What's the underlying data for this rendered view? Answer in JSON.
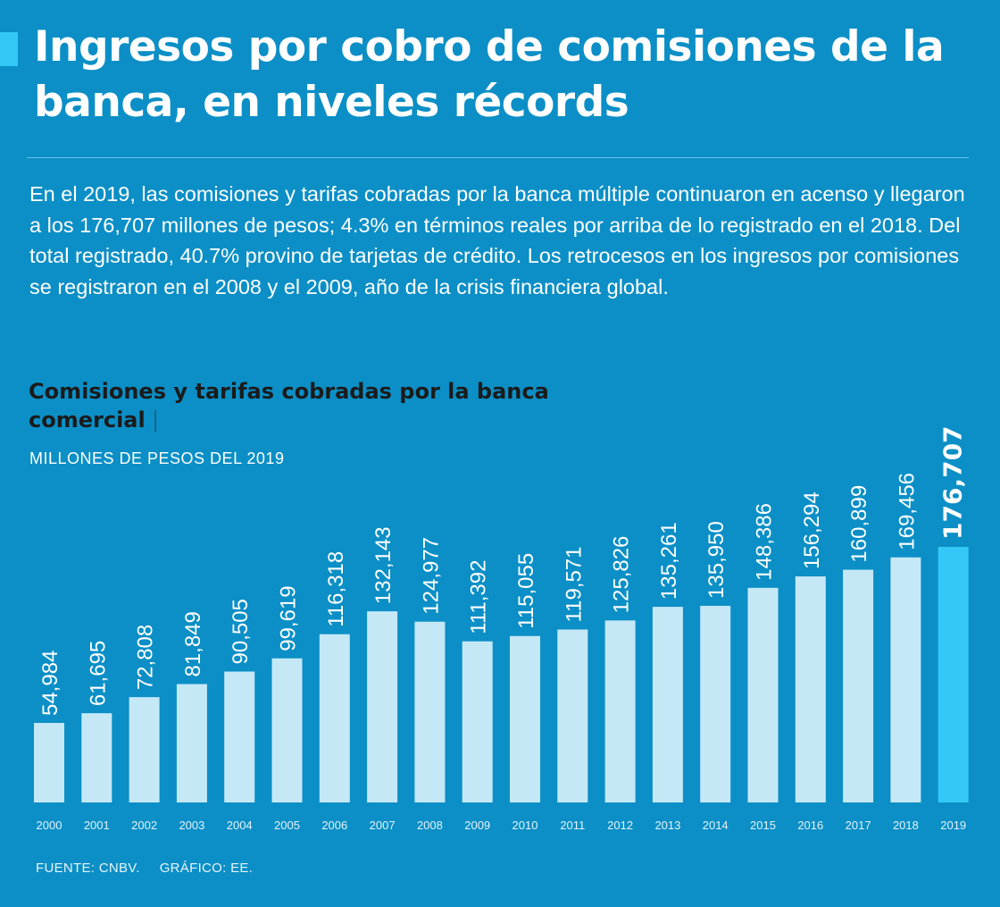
{
  "header": {
    "title": "Ingresos por cobro de comisiones de la banca, en niveles récords"
  },
  "intro": {
    "text": "En el 2019, las comisiones y tarifas cobradas por la banca múltiple continuaron en acenso y llegaron a los 176,707 millones de pesos; 4.3% en términos reales por arriba de lo registrado en el 2018. Del total registrado, 40.7% provino de tarjetas de crédito. Los retrocesos en los ingresos por comisiones se registraron en el 2008 y el 2009, año de la crisis financiera global."
  },
  "chart_data": {
    "type": "bar",
    "title": "Comisiones y tarifas cobradas por la banca comercial",
    "ylabel": "MILLONES DE PESOS DEL 2019",
    "xlabel": "",
    "categories": [
      "2000",
      "2001",
      "2002",
      "2003",
      "2004",
      "2005",
      "2006",
      "2007",
      "2008",
      "2009",
      "2010",
      "2011",
      "2012",
      "2013",
      "2014",
      "2015",
      "2016",
      "2017",
      "2018",
      "2019"
    ],
    "values": [
      54984,
      61695,
      72808,
      81849,
      90505,
      99619,
      116318,
      132143,
      124977,
      111392,
      115055,
      119571,
      125826,
      135261,
      135950,
      148386,
      156294,
      160899,
      169456,
      176707
    ],
    "value_labels": [
      "54,984",
      "61,695",
      "72,808",
      "81,849",
      "90,505",
      "99,619",
      "116,318",
      "132,143",
      "124,977",
      "111,392",
      "115,055",
      "119,571",
      "125,826",
      "135,261",
      "135,950",
      "148,386",
      "156,294",
      "160,899",
      "169,456",
      "176,707"
    ],
    "ylim": [
      0,
      176707
    ],
    "highlight_category": "2019",
    "grid": false,
    "colors": {
      "bar": "#c5e8f7",
      "highlight": "#33c8f5",
      "label": "#ffffff"
    }
  },
  "footer": {
    "source": "FUENTE: CNBV.",
    "credit": "GRÁFICO: EE."
  }
}
